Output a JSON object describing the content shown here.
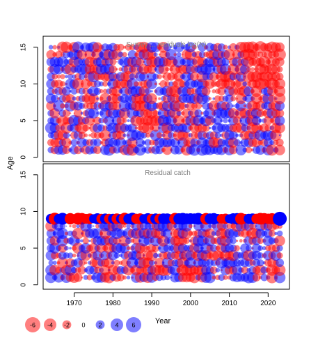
{
  "chart_data": {
    "type": "scatter",
    "ylabel": "Age",
    "xlabel": "Year",
    "x_ticks": [
      1970,
      1980,
      1990,
      2000,
      2010,
      2020
    ],
    "y_ticks": [
      0,
      5,
      10,
      15
    ],
    "xlim": [
      1962,
      2025.5
    ],
    "colors": {
      "positive": "#0000ff",
      "negative": "#ff0000"
    },
    "legend": {
      "placement": "bottom-left",
      "values": [
        -6,
        -4,
        -2,
        0,
        2,
        4,
        6
      ],
      "labels": [
        "-6",
        "-4",
        "-2",
        "0",
        "2",
        "4",
        "6"
      ]
    },
    "panels": [
      {
        "title": "Survey ... residuals log(N)",
        "years": [
          1964,
          2023
        ],
        "ages": [
          1,
          15
        ],
        "ylim": [
          -0.6,
          16.5
        ],
        "value_range": [
          -6,
          6
        ]
      },
      {
        "title": "Residual catch",
        "years": [
          1964,
          2023
        ],
        "ages": [
          1,
          9
        ],
        "ylim": [
          -0.6,
          16.5
        ],
        "value_range": [
          -6,
          6
        ],
        "note": "plus-group age 9 shows large residuals, positive (blue) in most recent year 2023"
      }
    ]
  }
}
